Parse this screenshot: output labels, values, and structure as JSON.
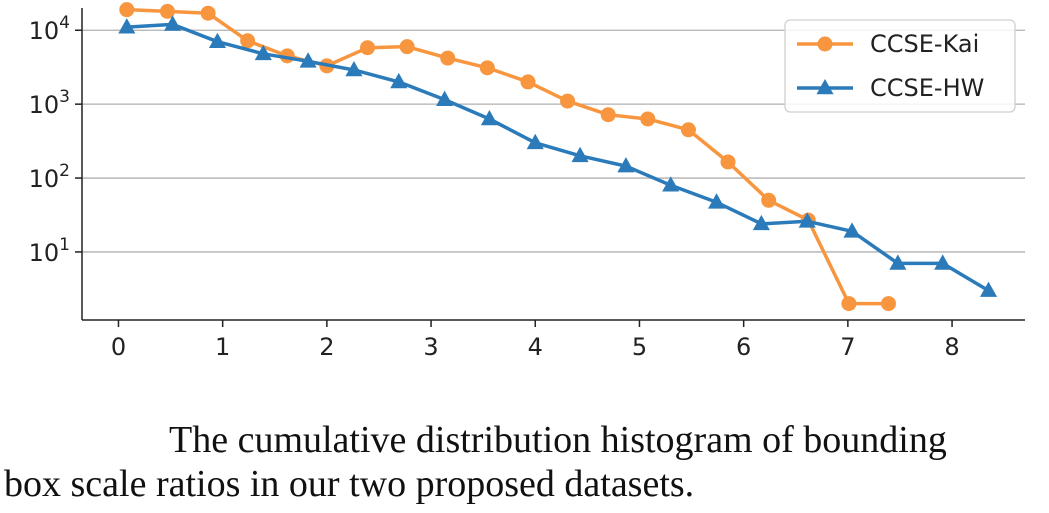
{
  "chart_data": {
    "type": "line",
    "title": "",
    "xlabel": "",
    "ylabel": "",
    "y_scale": "log",
    "xlim": [
      -0.35,
      8.7
    ],
    "ylim": [
      1.2,
      20000
    ],
    "x_ticks": [
      0,
      1,
      2,
      3,
      4,
      5,
      6,
      7,
      8
    ],
    "y_ticks": [
      {
        "value": 10,
        "base": "10",
        "exp": "1"
      },
      {
        "value": 100,
        "base": "10",
        "exp": "2"
      },
      {
        "value": 1000,
        "base": "10",
        "exp": "3"
      },
      {
        "value": 10000,
        "base": "10",
        "exp": "4"
      }
    ],
    "grid": "horizontal",
    "legend_position": "top-right",
    "series": [
      {
        "name": "CCSE-Kai",
        "color": "#f7963f",
        "marker": "circle",
        "x": [
          0.08,
          0.47,
          0.86,
          1.24,
          1.62,
          2.0,
          2.39,
          2.77,
          3.16,
          3.54,
          3.93,
          4.31,
          4.7,
          5.08,
          5.47,
          5.85,
          6.24,
          6.62,
          7.01,
          7.39
        ],
        "y": [
          19000,
          18000,
          17000,
          7200,
          4500,
          3300,
          5800,
          6000,
          4200,
          3100,
          2000,
          1100,
          720,
          630,
          450,
          165,
          50,
          27,
          2,
          2
        ]
      },
      {
        "name": "CCSE-HW",
        "color": "#2b7bba",
        "marker": "triangle",
        "x": [
          0.08,
          0.52,
          0.95,
          1.39,
          1.82,
          2.26,
          2.69,
          3.13,
          3.56,
          4.0,
          4.43,
          4.87,
          5.3,
          5.74,
          6.17,
          6.61,
          7.04,
          7.48,
          7.91,
          8.35
        ],
        "y": [
          11000,
          12000,
          7000,
          4800,
          3800,
          2900,
          2000,
          1150,
          630,
          300,
          200,
          145,
          80,
          47,
          24,
          26,
          19,
          7,
          7,
          3
        ]
      }
    ]
  },
  "caption": {
    "line1": "The cumulative distribution histogram of bounding",
    "line2": "box scale ratios in our two proposed datasets."
  }
}
